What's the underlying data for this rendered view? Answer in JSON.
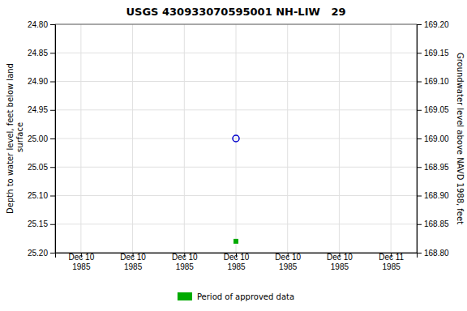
{
  "chart_data": {
    "type": "scatter",
    "title": "USGS 430933070595001 NH-LIW   29",
    "y_label": "Depth to water level, feet below land\n surface",
    "y2_label": "Groundwater level above NAVD 1988, feet",
    "categories": [
      "Dec 10\n1985",
      "Dec 10\n1985",
      "Dec 10\n1985",
      "Dec 10\n1985",
      "Dec 10\n1985",
      "Dec 10\n1985",
      "Dec 11\n1985"
    ],
    "series": [
      {
        "color": "#0000cc",
        "marker": "circle-open",
        "values": [
          null,
          null,
          null,
          25,
          null,
          null,
          null
        ]
      },
      {
        "name": "Period of approved data",
        "color": "#00aa00",
        "marker": "square",
        "values": [
          null,
          null,
          null,
          25.18,
          null,
          null,
          null
        ]
      }
    ],
    "ylim": [
      25.2,
      24.8
    ],
    "yticks": [
      {
        "value": 24.8,
        "label": "24.80"
      },
      24.85,
      {
        "value": 24.9,
        "label": "24.90"
      },
      24.95,
      {
        "value": 25,
        "label": "25.00"
      },
      25.05,
      {
        "value": 25.1,
        "label": "25.10"
      },
      25.15,
      {
        "value": 25.2,
        "label": "25.20"
      }
    ],
    "y2lim": [
      168.8,
      169.2
    ],
    "y2ticks": [
      {
        "value": 169.2,
        "label": "169.20"
      },
      169.15,
      {
        "value": 169.1,
        "label": "169.10"
      },
      169.05,
      {
        "value": 169,
        "label": "169.00"
      },
      168.95,
      {
        "value": 168.9,
        "label": "168.90"
      },
      168.85,
      {
        "value": 168.8,
        "label": "168.80"
      }
    ],
    "grid": true,
    "legend": "bottom"
  }
}
